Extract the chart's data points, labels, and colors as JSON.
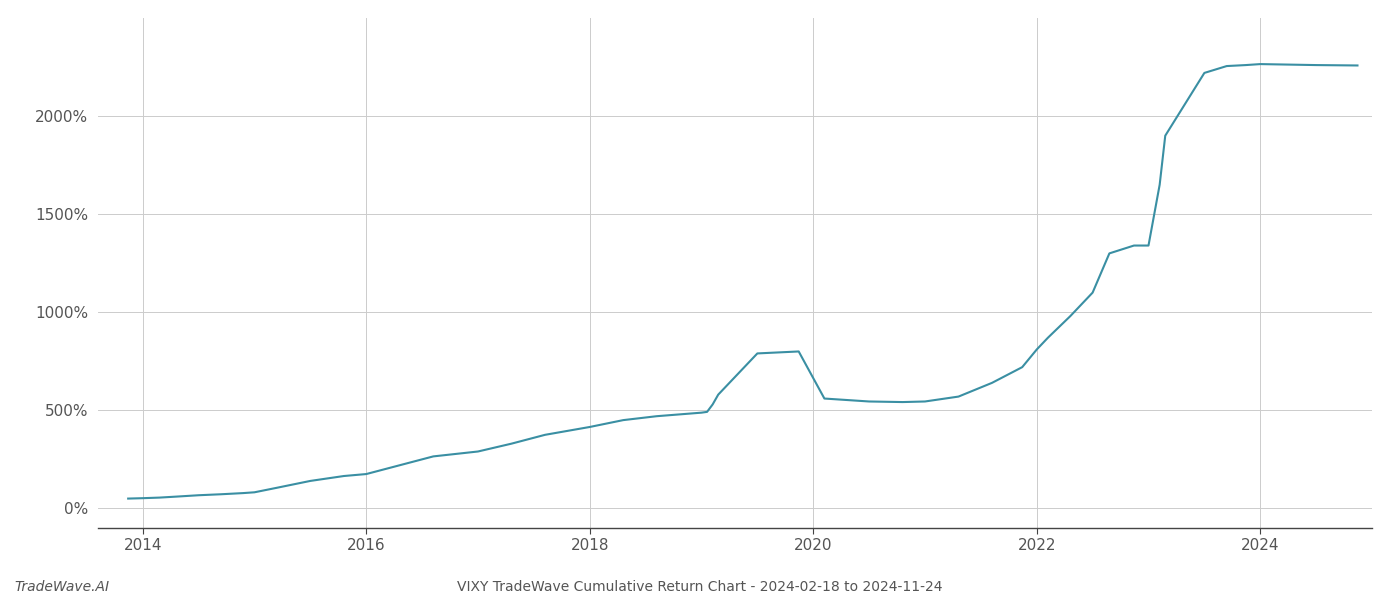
{
  "title": "VIXY TradeWave Cumulative Return Chart - 2024-02-18 to 2024-11-24",
  "watermark": "TradeWave.AI",
  "line_color": "#3a8fa3",
  "background_color": "#ffffff",
  "grid_color": "#cccccc",
  "xlim": [
    2013.6,
    2025.0
  ],
  "ylim": [
    -100,
    2500
  ],
  "xticks": [
    2014,
    2016,
    2018,
    2020,
    2022,
    2024
  ],
  "yticks": [
    0,
    500,
    1000,
    1500,
    2000
  ],
  "ytick_labels": [
    "0%",
    "500%",
    "1000%",
    "1500%",
    "2000%"
  ],
  "line_width": 1.5,
  "title_fontsize": 10,
  "tick_fontsize": 11,
  "watermark_fontsize": 10,
  "x_data": [
    2013.87,
    2014.0,
    2014.15,
    2014.3,
    2014.5,
    2014.7,
    2014.9,
    2015.0,
    2015.2,
    2015.5,
    2015.8,
    2016.0,
    2016.3,
    2016.6,
    2017.0,
    2017.3,
    2017.6,
    2018.0,
    2018.3,
    2018.6,
    2019.0,
    2019.05,
    2019.1,
    2019.15,
    2019.5,
    2019.87,
    2020.1,
    2020.5,
    2020.8,
    2021.0,
    2021.3,
    2021.6,
    2021.87,
    2022.0,
    2022.1,
    2022.3,
    2022.5,
    2022.65,
    2022.87,
    2023.0,
    2023.1,
    2023.15,
    2023.5,
    2023.7,
    2023.87,
    2024.0,
    2024.5,
    2024.87
  ],
  "y_data": [
    50,
    52,
    55,
    60,
    67,
    72,
    78,
    82,
    105,
    140,
    165,
    175,
    220,
    265,
    290,
    330,
    375,
    415,
    450,
    470,
    488,
    492,
    530,
    580,
    790,
    800,
    560,
    545,
    542,
    545,
    570,
    640,
    720,
    810,
    870,
    980,
    1100,
    1300,
    1340,
    1340,
    1650,
    1900,
    2220,
    2255,
    2260,
    2265,
    2260,
    2258
  ]
}
